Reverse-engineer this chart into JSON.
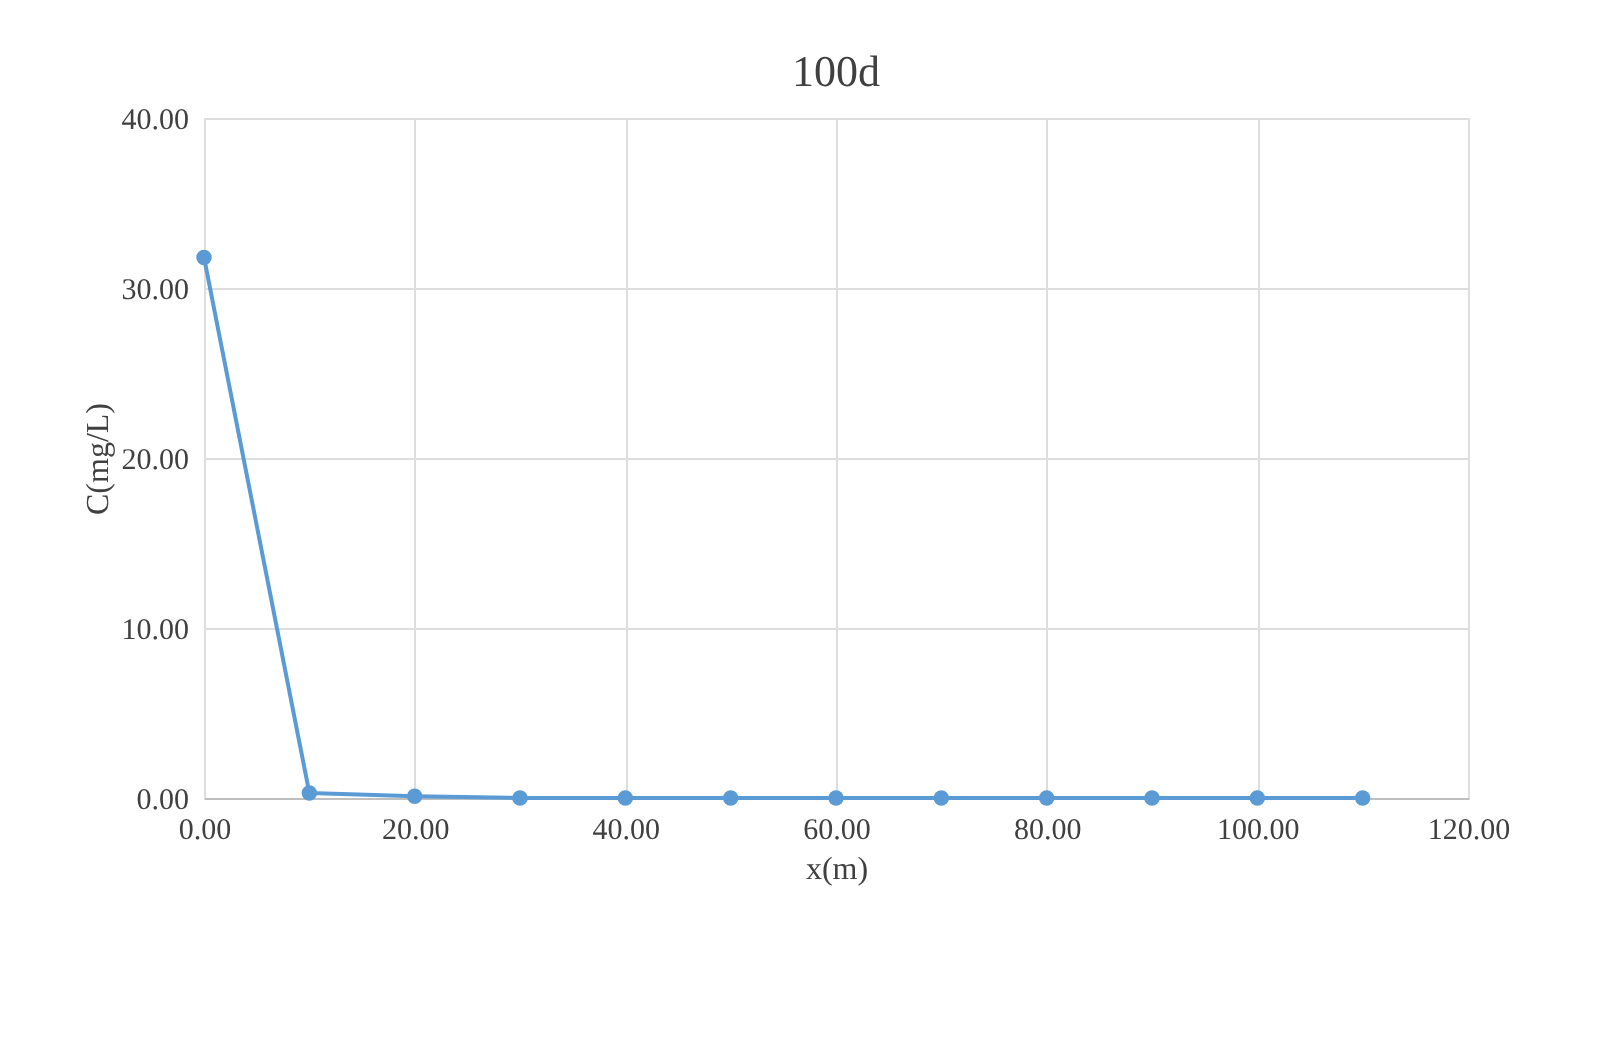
{
  "chart_data": {
    "type": "line",
    "title": "100d",
    "xlabel": "x(m)",
    "ylabel": "C(mg/L)",
    "x": [
      0,
      10,
      20,
      30,
      40,
      50,
      60,
      70,
      80,
      90,
      100,
      110
    ],
    "series": [
      {
        "color": "#5b9bd5",
        "values": [
          31.8,
          0.3,
          0.1,
          0.0,
          0.0,
          0.0,
          0.0,
          0.0,
          0.0,
          0.0,
          0.0,
          0.0
        ]
      }
    ],
    "xlim": [
      0,
      120
    ],
    "ylim": [
      0,
      40
    ],
    "xticks": [
      {
        "value": 0,
        "label": "0.00"
      },
      {
        "value": 20,
        "label": "20.00"
      },
      {
        "value": 40,
        "label": "40.00"
      },
      {
        "value": 60,
        "label": "60.00"
      },
      {
        "value": 80,
        "label": "80.00"
      },
      {
        "value": 100,
        "label": "100.00"
      },
      {
        "value": 120,
        "label": "120.00"
      }
    ],
    "yticks": [
      {
        "value": 0,
        "label": "0.00"
      },
      {
        "value": 10,
        "label": "10.00"
      },
      {
        "value": 20,
        "label": "20.00"
      },
      {
        "value": 30,
        "label": "30.00"
      },
      {
        "value": 40,
        "label": "40.00"
      }
    ],
    "grid": true,
    "marker": "circle",
    "line_style": "solid"
  }
}
